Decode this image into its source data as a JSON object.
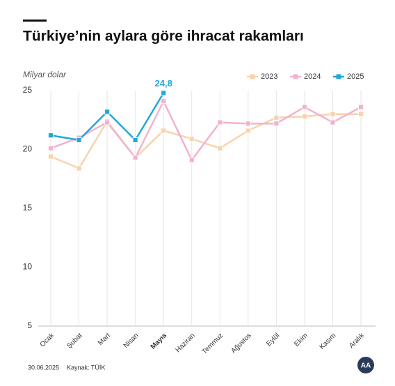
{
  "chart_data": {
    "type": "line",
    "title": "Türkiye’nin aylara göre ihracat rakamları",
    "y_label": "Milyar dolar",
    "categories": [
      "Ocak",
      "Şubat",
      "Mart",
      "Nisan",
      "Mayıs",
      "Haziran",
      "Temmuz",
      "Ağustos",
      "Eylül",
      "Ekim",
      "Kasım",
      "Aralık"
    ],
    "series": [
      {
        "name": "2023",
        "color": "#f8d3ac",
        "values": [
          19.4,
          18.4,
          22.4,
          19.3,
          21.6,
          20.9,
          20.1,
          21.6,
          22.7,
          22.8,
          23.0,
          23.0
        ]
      },
      {
        "name": "2024",
        "color": "#f2b2cf",
        "values": [
          20.1,
          21.0,
          22.3,
          19.3,
          24.1,
          19.1,
          22.3,
          22.2,
          22.2,
          23.6,
          22.3,
          23.6
        ]
      },
      {
        "name": "2025",
        "color": "#22a6de",
        "values": [
          21.2,
          20.8,
          23.2,
          20.8,
          24.8,
          null,
          null,
          null,
          null,
          null,
          null,
          null
        ],
        "value_labels": [
          null,
          null,
          null,
          null,
          "24,8",
          null,
          null,
          null,
          null,
          null,
          null,
          null
        ]
      }
    ],
    "ylim": [
      5,
      25
    ],
    "yticks": [
      5,
      10,
      15,
      20,
      25
    ],
    "grid": true,
    "legend": "top-right"
  },
  "footer": {
    "date": "30.06.2025",
    "source": "Kaynak: TÜİK"
  }
}
